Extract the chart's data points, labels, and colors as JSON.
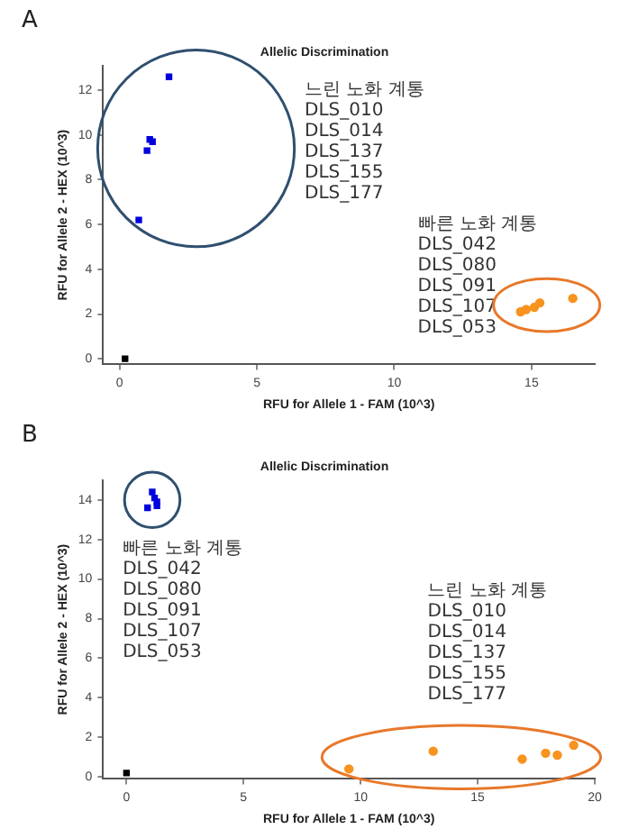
{
  "chart_data": [
    {
      "type": "scatter",
      "title": "Allelic Discrimination",
      "xlabel": "RFU for Allele 1 - FAM (10^3)",
      "ylabel": "RFU for Allele 2 - HEX (10^3)",
      "xlim": [
        -0.6,
        17.3
      ],
      "ylim": [
        -0.25,
        13.1
      ],
      "xticks": [
        0,
        5,
        10,
        15
      ],
      "yticks": [
        0,
        2,
        4,
        6,
        8,
        10,
        12
      ],
      "grid": false,
      "series": [
        {
          "color": "#0000dd",
          "marker": "square",
          "x": [
            1.8,
            1.1,
            1.2,
            1,
            0.7
          ],
          "values": [
            12.6,
            9.8,
            9.7,
            9.3,
            6.2
          ]
        },
        {
          "color": "#f7931e",
          "marker": "circle",
          "x": [
            14.6,
            14.8,
            15.1,
            15.3,
            16.5
          ],
          "values": [
            2.1,
            2.2,
            2.3,
            2.5,
            2.7
          ]
        },
        {
          "color": "#000000",
          "marker": "square",
          "x": [
            0.2
          ],
          "values": [
            0
          ]
        }
      ],
      "annotations": [
        "A",
        "느린 노화 계통\nDLS_010\nDLS_014\nDLS_137\nDLS_155\nDLS_177",
        "빠른 노화 계통\nDLS_042\nDLS_080\nDLS_091\nDLS_107\nDLS_053"
      ]
    },
    {
      "type": "scatter",
      "title": "Allelic Discrimination",
      "xlabel": "RFU for Allele 1 - FAM (10^3)",
      "ylabel": "RFU for Allele 2 - HEX (10^3)",
      "xlim": [
        -1,
        20
      ],
      "ylim": [
        -0.1,
        15
      ],
      "xticks": [
        0,
        5,
        10,
        15,
        20
      ],
      "yticks": [
        0,
        2,
        4,
        6,
        8,
        10,
        12,
        14
      ],
      "grid": false,
      "series": [
        {
          "color": "#0000dd",
          "marker": "square",
          "x": [
            1.1,
            1.2,
            1.3,
            0.9,
            1.3
          ],
          "values": [
            14.4,
            14.1,
            13.9,
            13.6,
            13.7
          ]
        },
        {
          "color": "#f7931e",
          "marker": "circle",
          "x": [
            9.5,
            13.1,
            16.9,
            17.9,
            18.4,
            19.1
          ],
          "values": [
            0.4,
            1.3,
            0.9,
            1.2,
            1.1,
            1.6
          ]
        },
        {
          "color": "#000000",
          "marker": "square",
          "x": [
            0
          ],
          "values": [
            0.2
          ]
        }
      ],
      "annotations": [
        "B",
        "빠른 노화 계통\nDLS_042\nDLS_080\nDLS_091\nDLS_107\nDLS_053",
        "느린 노화 계통\nDLS_010\nDLS_014\nDLS_137\nDLS_155\nDLS_177"
      ]
    }
  ]
}
